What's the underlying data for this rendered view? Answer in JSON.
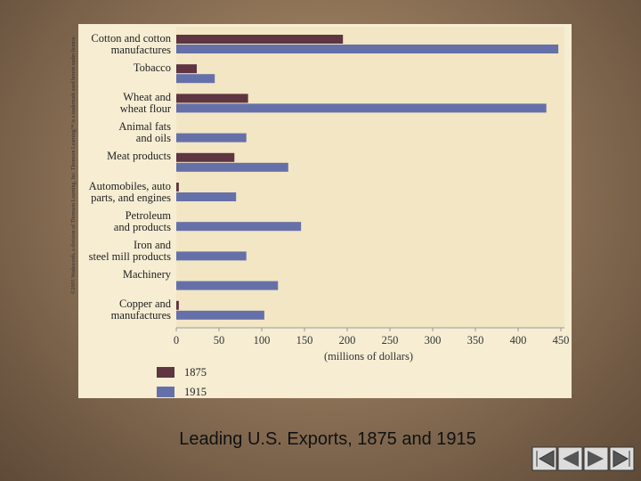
{
  "chart_data": {
    "type": "hbar",
    "categories": [
      "Cotton and cotton\nmanufactures",
      "Tobacco",
      "Wheat and\nwheat flour",
      "Animal fats\nand oils",
      "Meat products",
      "Automobiles, auto\nparts, and engines",
      "Petroleum\nand products",
      "Iron and\nsteel mill products",
      "Machinery",
      "Copper and\nmanufactures"
    ],
    "series": [
      {
        "name": "1875",
        "color": "#5e3540",
        "values": [
          195,
          24,
          84,
          0,
          68,
          3,
          0,
          0,
          0,
          3
        ]
      },
      {
        "name": "1915",
        "color": "#6670a8",
        "values": [
          447,
          45,
          433,
          82,
          131,
          70,
          146,
          82,
          119,
          103
        ]
      }
    ],
    "xlabel": "(millions of dollars)",
    "xlim": [
      0,
      450
    ],
    "xticks": [
      0,
      50,
      100,
      150,
      200,
      250,
      300,
      350,
      400,
      450
    ],
    "credit": "©2005 Wadsworth, a division of Thomson Learning, Inc. Thomson Learning™ is a trademark used herein under license."
  },
  "caption": "Leading U.S. Exports, 1875 and 1915"
}
